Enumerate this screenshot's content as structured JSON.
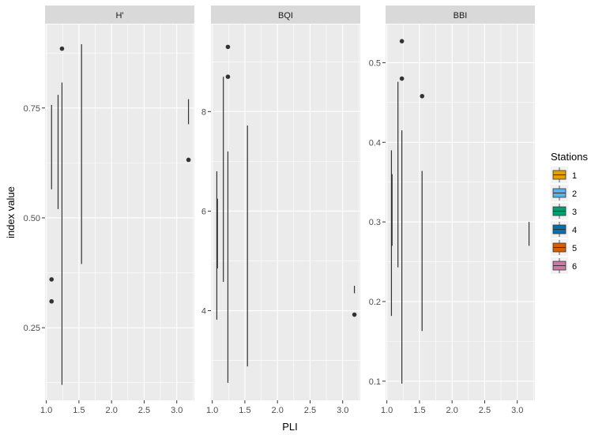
{
  "chart_data": {
    "type": "boxplot",
    "title": "",
    "xlabel": "PLI",
    "ylabel": "index value",
    "grid": true,
    "legend": {
      "title": "Stations",
      "position": "right",
      "entries": [
        {
          "label": "1",
          "color": "#E69F00"
        },
        {
          "label": "2",
          "color": "#56B4E9"
        },
        {
          "label": "3",
          "color": "#009E73"
        },
        {
          "label": "4",
          "color": "#0072B2"
        },
        {
          "label": "5",
          "color": "#D55E00"
        },
        {
          "label": "6",
          "color": "#CC79A7"
        }
      ]
    },
    "x_ticks": [
      "1.0",
      "1.5",
      "2.0",
      "2.5",
      "3.0"
    ],
    "xlim": [
      0.98,
      3.27
    ],
    "panels": [
      {
        "strip": "H'",
        "ylim": [
          0.085,
          0.94
        ],
        "y_ticks": [
          0.25,
          0.5,
          0.75
        ],
        "y_tick_labels": [
          "0.25",
          "0.50",
          "0.75"
        ],
        "whiskers": [
          {
            "x": 1.08,
            "ymin": 0.565,
            "ymax": 0.757
          },
          {
            "x": 1.18,
            "ymin": 0.52,
            "ymax": 0.78
          },
          {
            "x": 1.24,
            "ymin": 0.12,
            "ymax": 0.808
          },
          {
            "x": 1.54,
            "ymin": 0.395,
            "ymax": 0.895
          },
          {
            "x": 3.18,
            "ymin": 0.713,
            "ymax": 0.77
          }
        ],
        "outliers": [
          {
            "x": 1.24,
            "y": 0.885
          },
          {
            "x": 1.08,
            "y": 0.36
          },
          {
            "x": 1.08,
            "y": 0.31
          },
          {
            "x": 3.18,
            "y": 0.632
          }
        ]
      },
      {
        "strip": "BQI",
        "ylim": [
          2.2,
          9.75
        ],
        "y_ticks": [
          4,
          6,
          8
        ],
        "y_tick_labels": [
          "4",
          "6",
          "8"
        ],
        "whiskers": [
          {
            "x": 1.07,
            "ymin": 3.82,
            "ymax": 6.8
          },
          {
            "x": 1.08,
            "ymin": 4.85,
            "ymax": 6.25
          },
          {
            "x": 1.17,
            "ymin": 4.58,
            "ymax": 8.7
          },
          {
            "x": 1.24,
            "ymin": 2.55,
            "ymax": 7.2
          },
          {
            "x": 1.54,
            "ymin": 2.88,
            "ymax": 7.72
          },
          {
            "x": 3.18,
            "ymin": 4.35,
            "ymax": 4.5
          }
        ],
        "outliers": [
          {
            "x": 1.24,
            "y": 9.3
          },
          {
            "x": 1.24,
            "y": 8.7
          },
          {
            "x": 3.18,
            "y": 3.92
          }
        ]
      },
      {
        "strip": "BBI",
        "ylim": [
          0.076,
          0.548
        ],
        "y_ticks": [
          0.1,
          0.2,
          0.3,
          0.4,
          0.5
        ],
        "y_tick_labels": [
          "0.1",
          "0.2",
          "0.3",
          "0.4",
          "0.5"
        ],
        "whiskers": [
          {
            "x": 1.07,
            "ymin": 0.182,
            "ymax": 0.39
          },
          {
            "x": 1.08,
            "ymin": 0.27,
            "ymax": 0.36
          },
          {
            "x": 1.17,
            "ymin": 0.243,
            "ymax": 0.476
          },
          {
            "x": 1.23,
            "ymin": 0.097,
            "ymax": 0.415
          },
          {
            "x": 1.54,
            "ymin": 0.163,
            "ymax": 0.364
          },
          {
            "x": 3.18,
            "ymin": 0.27,
            "ymax": 0.3
          }
        ],
        "outliers": [
          {
            "x": 1.23,
            "y": 0.527
          },
          {
            "x": 1.23,
            "y": 0.48
          },
          {
            "x": 1.54,
            "y": 0.458
          }
        ]
      }
    ]
  },
  "colors": {
    "panel_bg": "#EBEBEB",
    "strip_bg": "#D9D9D9",
    "grid": "#FFFFFF",
    "ink": "#333333"
  }
}
